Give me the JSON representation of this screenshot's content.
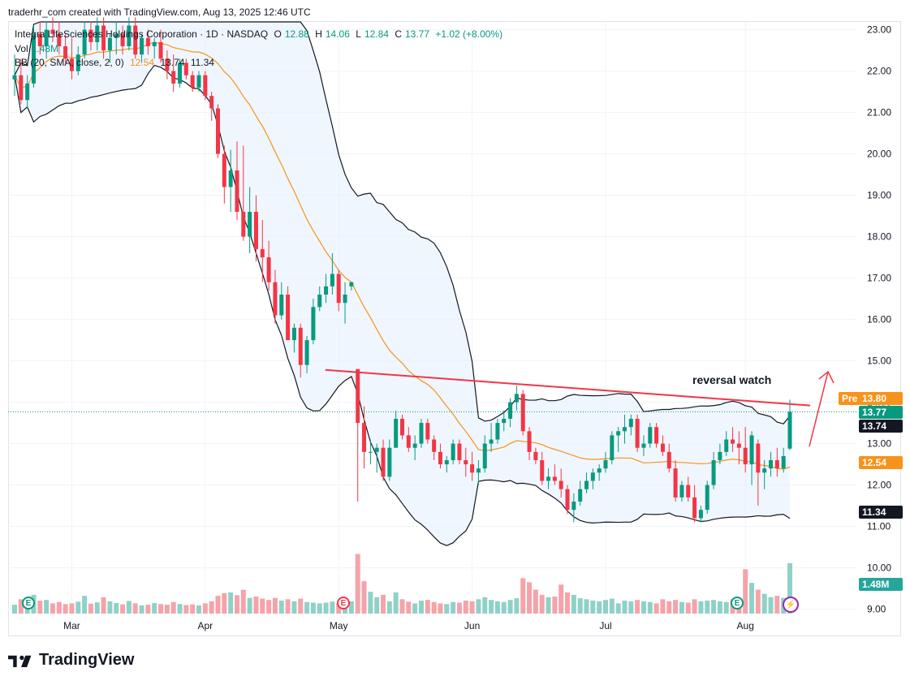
{
  "header": {
    "credit": "traderhr_com created with TradingView.com, Aug 13, 2025 12:46 UTC"
  },
  "legend": {
    "symbol": "Integra LifeSciences Holdings Corporation · 1D · NASDAQ",
    "o_label": "O",
    "o_val": "12.88",
    "h_label": "H",
    "h_val": "14.06",
    "l_label": "L",
    "l_val": "12.84",
    "c_label": "C",
    "c_val": "13.77",
    "change": "+1.02 (+8.00%)",
    "vol_label": "Vol",
    "vol_val": "1.48M",
    "bb_label": "BB (20, SMA, close, 2, 0)",
    "bb_mid": "12.54",
    "bb_up": "13.74",
    "bb_low": "11.34"
  },
  "annotation": {
    "text": "reversal watch"
  },
  "badges": {
    "pre_label": "Pre",
    "pre_value": "13.80",
    "last": "13.77",
    "upper": "13.74",
    "basis": "12.54",
    "lower": "11.34",
    "volume": "1.48M"
  },
  "events": {
    "earnings": "E",
    "dividend": "⚡"
  },
  "brand": {
    "name": "TradingView"
  },
  "colors": {
    "up": "#089981",
    "down": "#f23645",
    "vol_up": "#8fd1c7",
    "vol_down": "#f5a3a9",
    "basis": "#f7931a",
    "band": "#131722",
    "band_fill": "#e3effd",
    "trend": "#f23645"
  },
  "chart_data": {
    "type": "candlestick",
    "y_axis": {
      "range": [
        8.9,
        23.3
      ],
      "ticks": [
        "23.00",
        "22.00",
        "21.00",
        "20.00",
        "19.00",
        "18.00",
        "17.00",
        "16.00",
        "15.00",
        "14.00",
        "13.00",
        "12.00",
        "11.00",
        "10.00",
        "9.00"
      ]
    },
    "x_axis": {
      "ticks": [
        "Mar",
        "Apr",
        "May",
        "Jun",
        "Jul",
        "Aug"
      ]
    },
    "indicators": [
      "Volume",
      "Bollinger Bands (20, SMA, close, 2, 0)"
    ],
    "bars": [
      [
        "2025-02-18",
        21.8,
        22.4,
        21.4,
        21.9,
        0.26
      ],
      [
        "2025-02-19",
        21.9,
        22.3,
        21.2,
        21.3,
        0.42
      ],
      [
        "2025-02-20",
        21.3,
        21.9,
        21.1,
        21.7,
        0.3
      ],
      [
        "2025-02-21",
        21.7,
        23.1,
        21.6,
        22.9,
        0.55
      ],
      [
        "2025-02-24",
        22.9,
        23.2,
        22.4,
        22.6,
        0.38
      ],
      [
        "2025-02-25",
        22.6,
        23.2,
        22.3,
        23.0,
        0.4
      ],
      [
        "2025-02-26",
        23.0,
        23.3,
        22.7,
        22.9,
        0.3
      ],
      [
        "2025-02-27",
        22.9,
        23.2,
        22.4,
        22.6,
        0.34
      ],
      [
        "2025-02-28",
        22.6,
        22.9,
        22.2,
        22.3,
        0.28
      ],
      [
        "2025-03-03",
        22.3,
        22.8,
        21.8,
        22.0,
        0.3
      ],
      [
        "2025-03-04",
        22.0,
        22.6,
        21.9,
        22.4,
        0.35
      ],
      [
        "2025-03-05",
        22.4,
        23.2,
        22.3,
        23.0,
        0.52
      ],
      [
        "2025-03-06",
        23.0,
        23.2,
        22.5,
        22.7,
        0.29
      ],
      [
        "2025-03-07",
        22.7,
        23.3,
        22.5,
        23.1,
        0.33
      ],
      [
        "2025-03-10",
        23.1,
        23.3,
        22.3,
        22.5,
        0.48
      ],
      [
        "2025-03-11",
        22.5,
        22.9,
        22.2,
        22.8,
        0.36
      ],
      [
        "2025-03-12",
        22.8,
        23.2,
        22.4,
        22.9,
        0.31
      ],
      [
        "2025-03-13",
        22.9,
        23.1,
        22.4,
        22.6,
        0.27
      ],
      [
        "2025-03-14",
        22.6,
        23.3,
        22.5,
        23.1,
        0.37
      ],
      [
        "2025-03-17",
        23.1,
        23.3,
        22.3,
        22.4,
        0.3
      ],
      [
        "2025-03-18",
        22.4,
        22.9,
        22.2,
        22.8,
        0.24
      ],
      [
        "2025-03-19",
        22.8,
        23.0,
        22.4,
        22.6,
        0.26
      ],
      [
        "2025-03-20",
        22.6,
        22.8,
        22.3,
        22.7,
        0.31
      ],
      [
        "2025-03-21",
        22.7,
        23.0,
        22.2,
        22.3,
        0.28
      ],
      [
        "2025-03-24",
        22.3,
        22.5,
        21.8,
        22.0,
        0.26
      ],
      [
        "2025-03-25",
        22.0,
        22.4,
        21.5,
        21.7,
        0.34
      ],
      [
        "2025-03-26",
        21.7,
        22.3,
        21.6,
        22.2,
        0.28
      ],
      [
        "2025-03-27",
        22.2,
        22.3,
        21.8,
        21.9,
        0.25
      ],
      [
        "2025-03-28",
        21.9,
        22.0,
        21.5,
        21.6,
        0.27
      ],
      [
        "2025-03-31",
        21.6,
        22.0,
        21.5,
        21.9,
        0.24
      ],
      [
        "2025-04-01",
        21.9,
        22.0,
        21.3,
        21.4,
        0.3
      ],
      [
        "2025-04-02",
        21.4,
        21.5,
        20.8,
        21.1,
        0.36
      ],
      [
        "2025-04-03",
        21.1,
        21.2,
        19.9,
        20.0,
        0.52
      ],
      [
        "2025-04-04",
        20.0,
        20.2,
        18.8,
        19.2,
        0.6
      ],
      [
        "2025-04-07",
        19.2,
        20.1,
        18.6,
        19.6,
        0.62
      ],
      [
        "2025-04-08",
        19.6,
        20.3,
        18.4,
        18.6,
        0.54
      ],
      [
        "2025-04-09",
        18.6,
        20.2,
        17.9,
        18.0,
        0.7
      ],
      [
        "2025-04-10",
        18.0,
        19.2,
        17.6,
        18.6,
        0.46
      ],
      [
        "2025-04-11",
        18.6,
        19.0,
        17.4,
        17.7,
        0.5
      ],
      [
        "2025-04-14",
        17.7,
        18.4,
        16.9,
        17.5,
        0.44
      ],
      [
        "2025-04-15",
        17.5,
        17.9,
        16.7,
        16.9,
        0.4
      ],
      [
        "2025-04-16",
        16.9,
        17.2,
        15.9,
        16.1,
        0.46
      ],
      [
        "2025-04-17",
        16.1,
        16.9,
        16.0,
        16.6,
        0.38
      ],
      [
        "2025-04-21",
        16.6,
        16.8,
        15.9,
        15.5,
        0.42
      ],
      [
        "2025-04-22",
        15.5,
        15.9,
        15.2,
        15.8,
        0.36
      ],
      [
        "2025-04-23",
        15.8,
        15.9,
        14.6,
        14.9,
        0.44
      ],
      [
        "2025-04-24",
        14.9,
        15.6,
        14.7,
        15.5,
        0.34
      ],
      [
        "2025-04-25",
        15.5,
        16.5,
        15.4,
        16.3,
        0.32
      ],
      [
        "2025-04-28",
        16.3,
        16.8,
        16.2,
        16.6,
        0.3
      ],
      [
        "2025-04-29",
        16.6,
        17.1,
        16.4,
        16.8,
        0.32
      ],
      [
        "2025-04-30",
        16.8,
        17.6,
        16.6,
        17.1,
        0.35
      ],
      [
        "2025-05-01",
        17.1,
        17.2,
        16.2,
        16.4,
        0.3
      ],
      [
        "2025-05-02",
        16.4,
        16.9,
        15.9,
        16.6,
        0.28
      ],
      [
        "2025-05-05",
        16.8,
        16.9,
        16.7,
        16.9,
        0.36
      ],
      [
        "2025-05-06",
        14.8,
        14.8,
        11.6,
        13.5,
        1.75
      ],
      [
        "2025-05-07",
        13.5,
        13.9,
        12.4,
        12.8,
        0.95
      ],
      [
        "2025-05-08",
        12.8,
        13.1,
        12.5,
        12.8,
        0.64
      ],
      [
        "2025-05-09",
        12.8,
        13.0,
        12.3,
        12.9,
        0.48
      ],
      [
        "2025-05-12",
        12.9,
        13.1,
        12.1,
        12.2,
        0.55
      ],
      [
        "2025-05-13",
        12.2,
        13.1,
        12.1,
        12.9,
        0.36
      ],
      [
        "2025-05-14",
        12.9,
        13.8,
        12.9,
        13.6,
        0.62
      ],
      [
        "2025-05-15",
        13.6,
        13.7,
        13.1,
        13.2,
        0.42
      ],
      [
        "2025-05-16",
        13.2,
        13.4,
        12.8,
        12.9,
        0.35
      ],
      [
        "2025-05-19",
        12.9,
        13.2,
        12.6,
        13.0,
        0.3
      ],
      [
        "2025-05-20",
        13.0,
        13.6,
        12.9,
        13.5,
        0.38
      ],
      [
        "2025-05-21",
        13.5,
        13.6,
        13.0,
        13.1,
        0.4
      ],
      [
        "2025-05-22",
        13.1,
        13.2,
        12.6,
        12.8,
        0.34
      ],
      [
        "2025-05-23",
        12.8,
        13.0,
        12.4,
        12.5,
        0.3
      ],
      [
        "2025-05-27",
        12.5,
        12.7,
        12.3,
        12.6,
        0.28
      ],
      [
        "2025-05-28",
        12.6,
        13.1,
        12.5,
        13.0,
        0.34
      ],
      [
        "2025-05-29",
        13.0,
        13.1,
        12.5,
        12.6,
        0.32
      ],
      [
        "2025-05-30",
        12.6,
        12.9,
        12.2,
        12.5,
        0.38
      ],
      [
        "2025-06-02",
        12.5,
        12.8,
        12.1,
        12.3,
        0.36
      ],
      [
        "2025-06-03",
        12.3,
        12.6,
        12.0,
        12.4,
        0.42
      ],
      [
        "2025-06-04",
        12.4,
        13.2,
        12.3,
        13.0,
        0.48
      ],
      [
        "2025-06-05",
        13.0,
        13.5,
        12.8,
        13.1,
        0.4
      ],
      [
        "2025-06-06",
        13.1,
        13.6,
        13.0,
        13.5,
        0.36
      ],
      [
        "2025-06-09",
        13.5,
        13.8,
        13.3,
        13.6,
        0.34
      ],
      [
        "2025-06-10",
        13.6,
        14.1,
        13.4,
        14.0,
        0.4
      ],
      [
        "2025-06-11",
        14.0,
        14.4,
        13.8,
        14.2,
        0.45
      ],
      [
        "2025-06-12",
        14.2,
        14.3,
        13.2,
        13.3,
        1.04
      ],
      [
        "2025-06-13",
        13.3,
        13.4,
        12.6,
        12.8,
        0.92
      ],
      [
        "2025-06-16",
        12.8,
        12.9,
        12.5,
        12.6,
        0.7
      ],
      [
        "2025-06-17",
        12.6,
        12.8,
        12.0,
        12.1,
        0.55
      ],
      [
        "2025-06-18",
        12.1,
        12.4,
        11.9,
        12.2,
        0.48
      ],
      [
        "2025-06-19",
        12.2,
        12.5,
        12.0,
        12.1,
        0.5
      ],
      [
        "2025-06-20",
        12.1,
        12.4,
        11.7,
        11.9,
        0.85
      ],
      [
        "2025-06-23",
        11.9,
        12.0,
        11.3,
        11.4,
        0.62
      ],
      [
        "2025-06-24",
        11.4,
        11.8,
        11.1,
        11.6,
        0.55
      ],
      [
        "2025-06-25",
        11.6,
        12.1,
        11.5,
        11.9,
        0.45
      ],
      [
        "2025-06-26",
        11.9,
        12.3,
        11.8,
        12.1,
        0.42
      ],
      [
        "2025-06-27",
        12.1,
        12.4,
        11.9,
        12.3,
        0.38
      ],
      [
        "2025-06-30",
        12.3,
        12.5,
        12.1,
        12.4,
        0.36
      ],
      [
        "2025-07-01",
        12.4,
        12.8,
        12.3,
        12.6,
        0.4
      ],
      [
        "2025-07-02",
        12.6,
        13.3,
        12.5,
        13.2,
        0.44
      ],
      [
        "2025-07-03",
        13.2,
        13.4,
        12.8,
        13.3,
        0.3
      ],
      [
        "2025-07-07",
        13.3,
        13.7,
        13.0,
        13.4,
        0.38
      ],
      [
        "2025-07-08",
        13.4,
        13.7,
        13.2,
        13.6,
        0.36
      ],
      [
        "2025-07-09",
        13.6,
        13.7,
        12.8,
        12.9,
        0.4
      ],
      [
        "2025-07-10",
        12.9,
        13.2,
        12.7,
        13.0,
        0.36
      ],
      [
        "2025-07-11",
        13.0,
        13.5,
        12.9,
        13.4,
        0.34
      ],
      [
        "2025-07-14",
        13.4,
        13.5,
        12.9,
        13.0,
        0.3
      ],
      [
        "2025-07-15",
        13.0,
        13.2,
        12.7,
        12.8,
        0.42
      ],
      [
        "2025-07-16",
        12.8,
        13.0,
        12.3,
        12.4,
        0.36
      ],
      [
        "2025-07-17",
        12.4,
        12.6,
        11.6,
        11.7,
        0.4
      ],
      [
        "2025-07-18",
        11.7,
        12.1,
        11.6,
        12.0,
        0.34
      ],
      [
        "2025-07-21",
        12.0,
        12.2,
        11.6,
        11.7,
        0.32
      ],
      [
        "2025-07-22",
        11.7,
        12.0,
        11.1,
        11.2,
        0.42
      ],
      [
        "2025-07-23",
        11.2,
        11.5,
        11.1,
        11.4,
        0.36
      ],
      [
        "2025-07-24",
        11.4,
        12.1,
        11.3,
        12.0,
        0.38
      ],
      [
        "2025-07-25",
        12.0,
        12.8,
        11.9,
        12.6,
        0.4
      ],
      [
        "2025-07-28",
        12.6,
        13.0,
        12.5,
        12.8,
        0.36
      ],
      [
        "2025-07-29",
        12.8,
        13.3,
        12.7,
        13.1,
        0.34
      ],
      [
        "2025-07-30",
        13.1,
        13.4,
        12.8,
        13.0,
        0.42
      ],
      [
        "2025-07-31",
        13.0,
        13.3,
        12.5,
        12.9,
        0.44
      ],
      [
        "2025-08-01",
        12.9,
        13.4,
        12.3,
        12.5,
        1.3
      ],
      [
        "2025-08-04",
        12.5,
        13.3,
        12.0,
        13.2,
        0.9
      ],
      [
        "2025-08-05",
        13.0,
        13.1,
        11.5,
        12.3,
        0.7
      ],
      [
        "2025-08-06",
        12.3,
        12.6,
        11.9,
        12.4,
        0.58
      ],
      [
        "2025-08-07",
        12.4,
        12.8,
        12.2,
        12.6,
        0.48
      ],
      [
        "2025-08-08",
        12.6,
        12.9,
        12.2,
        12.4,
        0.52
      ],
      [
        "2025-08-11",
        12.4,
        12.9,
        12.3,
        12.7,
        0.46
      ],
      [
        "2025-08-12",
        12.88,
        14.06,
        12.84,
        13.77,
        1.48
      ]
    ],
    "bollinger": {
      "upper": [
        [
          0,
          21.9
        ],
        [
          10,
          21.9
        ],
        [
          14,
          22.0
        ],
        [
          18,
          22.6
        ],
        [
          22,
          23.3
        ]
      ],
      "lower": [
        [
          0,
          21.5
        ],
        [
          5,
          21.3
        ],
        [
          10,
          20.8
        ],
        [
          14,
          20.6
        ],
        [
          18,
          20.9
        ],
        [
          22,
          21.2
        ]
      ]
    },
    "trendline": {
      "from": [
        "2025-05-06",
        14.8
      ],
      "to": [
        "2025-08-12",
        13.92
      ]
    },
    "arrow": true
  }
}
